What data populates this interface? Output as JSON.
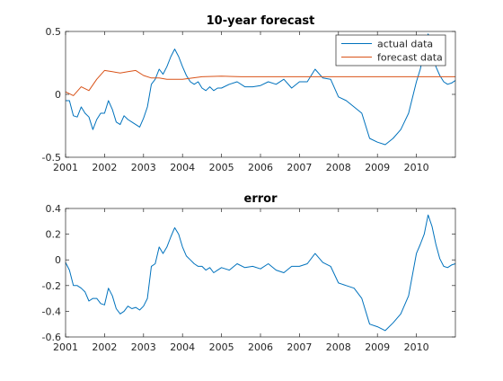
{
  "chart_data": [
    {
      "type": "line",
      "title": "10-year forecast",
      "xlim": [
        2001,
        2011
      ],
      "ylim": [
        -0.5,
        0.5
      ],
      "x_ticks": [
        2001,
        2002,
        2003,
        2004,
        2005,
        2006,
        2007,
        2008,
        2009,
        2010
      ],
      "x_tick_labels": [
        "2001",
        "2002",
        "2003",
        "2004",
        "2005",
        "2006",
        "2007",
        "2008",
        "2009",
        "2010"
      ],
      "y_ticks": [
        -0.5,
        0,
        0.5
      ],
      "y_tick_labels": [
        "-0.5",
        "0",
        "0.5"
      ],
      "legend_position": "top-right",
      "series": [
        {
          "name": "actual data",
          "color": "#0072BD",
          "x": [
            2001.0,
            2001.1,
            2001.2,
            2001.3,
            2001.4,
            2001.5,
            2001.6,
            2001.7,
            2001.8,
            2001.9,
            2002.0,
            2002.1,
            2002.2,
            2002.3,
            2002.4,
            2002.5,
            2002.6,
            2002.7,
            2002.8,
            2002.9,
            2003.0,
            2003.1,
            2003.2,
            2003.3,
            2003.4,
            2003.5,
            2003.6,
            2003.7,
            2003.8,
            2003.9,
            2004.0,
            2004.1,
            2004.2,
            2004.3,
            2004.4,
            2004.5,
            2004.6,
            2004.7,
            2004.8,
            2004.9,
            2005.0,
            2005.2,
            2005.4,
            2005.6,
            2005.8,
            2006.0,
            2006.2,
            2006.4,
            2006.6,
            2006.8,
            2007.0,
            2007.2,
            2007.4,
            2007.6,
            2007.8,
            2008.0,
            2008.2,
            2008.4,
            2008.6,
            2008.8,
            2009.0,
            2009.2,
            2009.4,
            2009.6,
            2009.8,
            2010.0,
            2010.1,
            2010.2,
            2010.3,
            2010.4,
            2010.5,
            2010.6,
            2010.7,
            2010.8,
            2010.9,
            2011.0
          ],
          "y": [
            -0.05,
            -0.05,
            -0.17,
            -0.18,
            -0.1,
            -0.15,
            -0.18,
            -0.28,
            -0.2,
            -0.15,
            -0.15,
            -0.05,
            -0.12,
            -0.22,
            -0.24,
            -0.17,
            -0.2,
            -0.22,
            -0.24,
            -0.26,
            -0.19,
            -0.1,
            0.08,
            0.12,
            0.2,
            0.16,
            0.22,
            0.3,
            0.36,
            0.3,
            0.22,
            0.15,
            0.1,
            0.08,
            0.1,
            0.05,
            0.03,
            0.06,
            0.03,
            0.05,
            0.05,
            0.08,
            0.1,
            0.06,
            0.06,
            0.07,
            0.1,
            0.08,
            0.12,
            0.05,
            0.1,
            0.1,
            0.2,
            0.13,
            0.12,
            -0.02,
            -0.05,
            -0.1,
            -0.15,
            -0.35,
            -0.38,
            -0.4,
            -0.35,
            -0.28,
            -0.15,
            0.1,
            0.2,
            0.35,
            0.48,
            0.4,
            0.22,
            0.15,
            0.1,
            0.08,
            0.09,
            0.11
          ]
        },
        {
          "name": "forecast data",
          "color": "#D95319",
          "x": [
            2001.0,
            2001.2,
            2001.4,
            2001.6,
            2001.8,
            2002.0,
            2002.2,
            2002.4,
            2002.6,
            2002.8,
            2003.0,
            2003.2,
            2003.4,
            2003.6,
            2003.8,
            2004.0,
            2004.5,
            2005.0,
            2005.5,
            2006.0,
            2006.5,
            2007.0,
            2007.5,
            2008.0,
            2009.0,
            2010.0,
            2011.0
          ],
          "y": [
            0.02,
            -0.01,
            0.06,
            0.03,
            0.12,
            0.19,
            0.18,
            0.17,
            0.18,
            0.19,
            0.15,
            0.13,
            0.13,
            0.12,
            0.12,
            0.12,
            0.14,
            0.145,
            0.14,
            0.14,
            0.14,
            0.14,
            0.14,
            0.14,
            0.14,
            0.14,
            0.14
          ]
        }
      ]
    },
    {
      "type": "line",
      "title": "error",
      "xlim": [
        2001,
        2011
      ],
      "ylim": [
        -0.6,
        0.4
      ],
      "x_ticks": [
        2001,
        2002,
        2003,
        2004,
        2005,
        2006,
        2007,
        2008,
        2009,
        2010
      ],
      "x_tick_labels": [
        "2001",
        "2002",
        "2003",
        "2004",
        "2005",
        "2006",
        "2007",
        "2008",
        "2009",
        "2010"
      ],
      "y_ticks": [
        -0.6,
        -0.4,
        -0.2,
        0,
        0.2,
        0.4
      ],
      "y_tick_labels": [
        "-0.6",
        "-0.4",
        "-0.2",
        "0",
        "0.2",
        "0.4"
      ],
      "series": [
        {
          "color": "#0072BD",
          "x": [
            2001.0,
            2001.1,
            2001.2,
            2001.3,
            2001.4,
            2001.5,
            2001.6,
            2001.7,
            2001.8,
            2001.9,
            2002.0,
            2002.1,
            2002.2,
            2002.3,
            2002.4,
            2002.5,
            2002.6,
            2002.7,
            2002.8,
            2002.9,
            2003.0,
            2003.1,
            2003.2,
            2003.3,
            2003.4,
            2003.5,
            2003.6,
            2003.7,
            2003.8,
            2003.9,
            2004.0,
            2004.1,
            2004.2,
            2004.3,
            2004.4,
            2004.5,
            2004.6,
            2004.7,
            2004.8,
            2004.9,
            2005.0,
            2005.2,
            2005.4,
            2005.6,
            2005.8,
            2006.0,
            2006.2,
            2006.4,
            2006.6,
            2006.8,
            2007.0,
            2007.2,
            2007.4,
            2007.6,
            2007.8,
            2008.0,
            2008.2,
            2008.4,
            2008.6,
            2008.8,
            2009.0,
            2009.2,
            2009.4,
            2009.6,
            2009.8,
            2010.0,
            2010.1,
            2010.2,
            2010.3,
            2010.4,
            2010.5,
            2010.6,
            2010.7,
            2010.8,
            2010.9,
            2011.0
          ],
          "y": [
            -0.02,
            -0.08,
            -0.2,
            -0.2,
            -0.22,
            -0.25,
            -0.32,
            -0.3,
            -0.3,
            -0.34,
            -0.35,
            -0.22,
            -0.28,
            -0.38,
            -0.42,
            -0.4,
            -0.36,
            -0.38,
            -0.37,
            -0.39,
            -0.36,
            -0.3,
            -0.05,
            -0.03,
            0.1,
            0.05,
            0.1,
            0.18,
            0.25,
            0.2,
            0.1,
            0.03,
            0.0,
            -0.03,
            -0.05,
            -0.05,
            -0.08,
            -0.06,
            -0.1,
            -0.08,
            -0.06,
            -0.08,
            -0.03,
            -0.06,
            -0.05,
            -0.07,
            -0.03,
            -0.08,
            -0.1,
            -0.05,
            -0.05,
            -0.03,
            0.05,
            -0.02,
            -0.05,
            -0.18,
            -0.2,
            -0.22,
            -0.3,
            -0.5,
            -0.52,
            -0.55,
            -0.49,
            -0.42,
            -0.28,
            0.05,
            0.12,
            0.2,
            0.35,
            0.26,
            0.12,
            0.01,
            -0.05,
            -0.06,
            -0.04,
            -0.03
          ]
        }
      ]
    }
  ]
}
